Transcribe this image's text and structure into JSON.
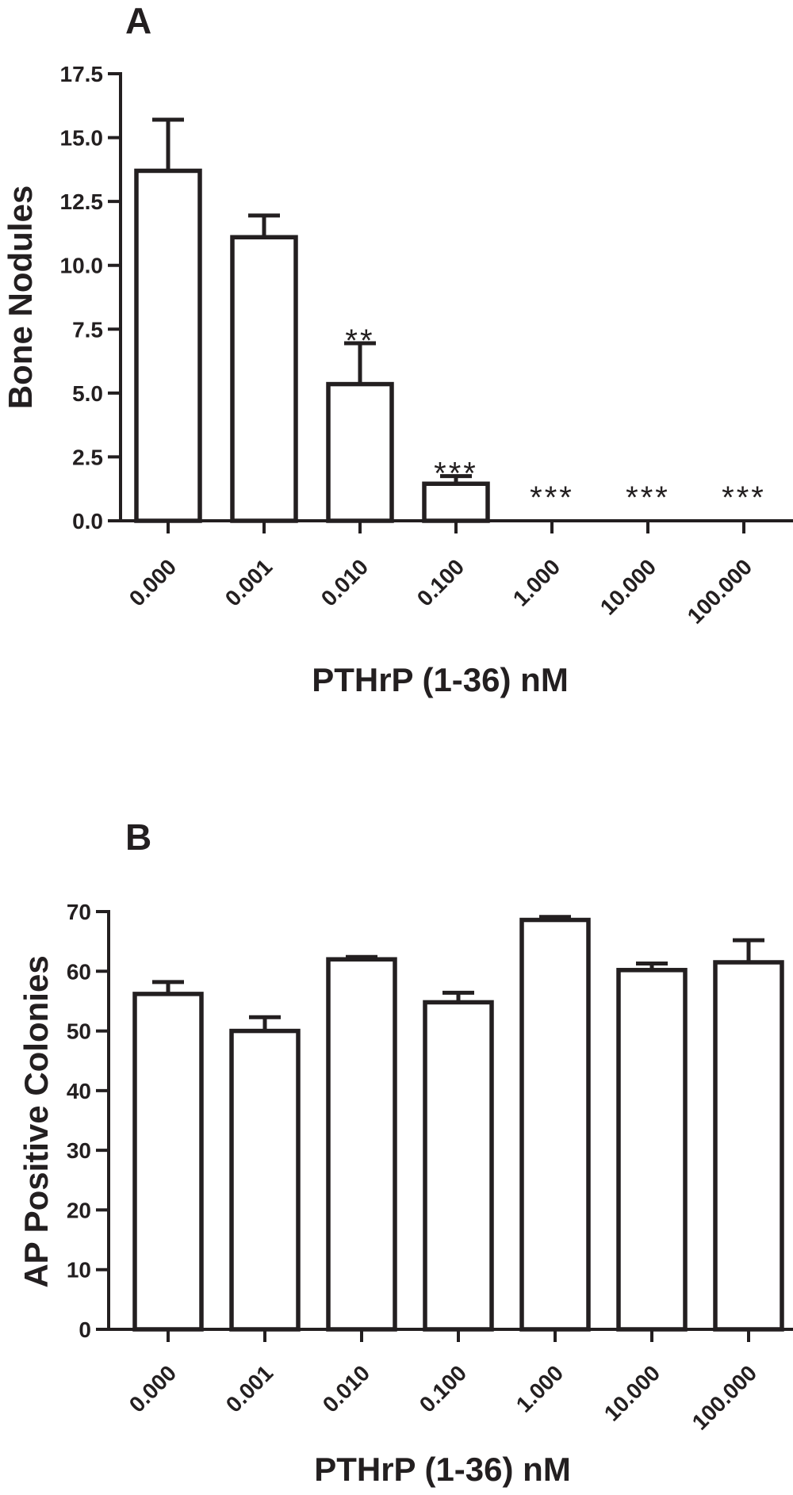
{
  "chart_data": [
    {
      "type": "bar",
      "panel": "A",
      "categories": [
        "0.000",
        "0.001",
        "0.010",
        "0.100",
        "1.000",
        "10.000",
        "100.000"
      ],
      "values": [
        13.7,
        11.1,
        5.35,
        1.45,
        0,
        0,
        0
      ],
      "errors": [
        2.0,
        0.85,
        1.6,
        0.3,
        0,
        0,
        0
      ],
      "significance": [
        "",
        "",
        "**",
        "***",
        "***",
        "***",
        "***"
      ],
      "xlabel": "PTHrP (1-36) nM",
      "ylabel": "Bone Nodules",
      "ylim": [
        0,
        17.5
      ],
      "yticks": [
        "0.0",
        "2.5",
        "5.0",
        "7.5",
        "10.0",
        "12.5",
        "15.0",
        "17.5"
      ],
      "grid": false,
      "colors": {
        "bar_fill": "#ffffff",
        "stroke": "#231f20"
      }
    },
    {
      "type": "bar",
      "panel": "B",
      "categories": [
        "0.000",
        "0.001",
        "0.010",
        "0.100",
        "1.000",
        "10.000",
        "100.000"
      ],
      "values": [
        56.2,
        50.0,
        62.0,
        54.8,
        68.6,
        60.2,
        61.5
      ],
      "errors": [
        2.0,
        2.3,
        0.4,
        1.6,
        0.5,
        1.1,
        3.7
      ],
      "significance": [
        "",
        "",
        "",
        "",
        "",
        "",
        ""
      ],
      "xlabel": "PTHrP (1-36) nM",
      "ylabel": "AP Positive Colonies",
      "ylim": [
        0,
        70
      ],
      "yticks": [
        "0",
        "10",
        "20",
        "30",
        "40",
        "50",
        "60",
        "70"
      ],
      "grid": false,
      "colors": {
        "bar_fill": "#ffffff",
        "stroke": "#231f20"
      }
    }
  ]
}
